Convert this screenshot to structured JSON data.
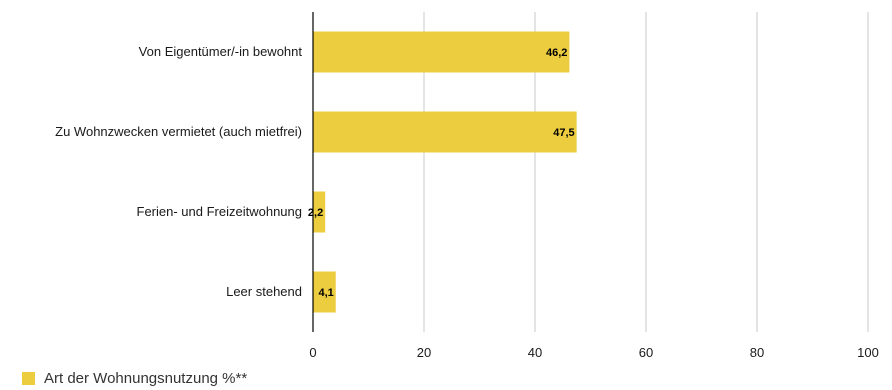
{
  "chart_data": {
    "type": "bar",
    "orientation": "horizontal",
    "categories": [
      "Von Eigentümer/-in bewohnt",
      "Zu Wohnzwecken vermietet (auch mietfrei)",
      "Ferien- und Freizeitwohnung",
      "Leer stehend"
    ],
    "series": [
      {
        "name": "Art der Wohnungsnutzung %**",
        "values": [
          46.2,
          47.5,
          2.2,
          4.1
        ],
        "value_labels": [
          "46,2",
          "47,5",
          "2,2",
          "4,1"
        ]
      }
    ],
    "xlim": [
      0,
      100
    ],
    "xticks": [
      0,
      20,
      40,
      60,
      80,
      100
    ],
    "grid": "vertical",
    "legend_position": "bottom-left",
    "bar_color": "#ECCD3F",
    "grid_color": "#c8c8c8",
    "axis_color": "#000000"
  }
}
